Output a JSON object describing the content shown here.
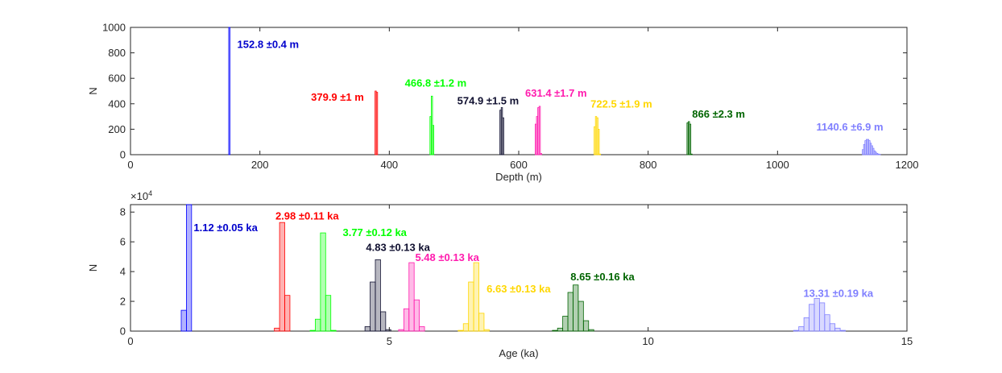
{
  "chart_data": [
    {
      "type": "histogram",
      "xlabel": "Depth (m)",
      "ylabel": "N",
      "xlim": [
        0,
        1200
      ],
      "ylim": [
        0,
        1000
      ],
      "xticks": [
        0,
        200,
        400,
        600,
        800,
        1000,
        1200
      ],
      "yticks": [
        0,
        200,
        400,
        600,
        800,
        1000
      ],
      "grid": false,
      "series": [
        {
          "label": "152.8 ±0.4 m",
          "color": "#0000ff",
          "fill_opacity": 0.3,
          "bins": [
            [
              151.8,
              153.8,
              1000
            ]
          ]
        },
        {
          "label": "379.9 ±1 m",
          "color": "#ff0000",
          "fill_opacity": 0.3,
          "bins": [
            [
              377.9,
              379.9,
              500
            ],
            [
              379.9,
              381.9,
              490
            ]
          ]
        },
        {
          "label": "466.8 ±1.2 m",
          "color": "#00ff00",
          "fill_opacity": 0.3,
          "bins": [
            [
              462.8,
              464.8,
              300
            ],
            [
              464.8,
              466.8,
              460
            ],
            [
              466.8,
              468.8,
              230
            ]
          ]
        },
        {
          "label": "574.9 ±1.5 m",
          "color": "#101030",
          "fill_opacity": 0.3,
          "bins": [
            [
              570.9,
              572.9,
              350
            ],
            [
              572.9,
              574.9,
              370
            ],
            [
              574.9,
              576.9,
              290
            ]
          ]
        },
        {
          "label": "631.4 ±1.7 m",
          "color": "#ff1cae",
          "fill_opacity": 0.3,
          "bins": [
            [
              625.4,
              627.4,
              240
            ],
            [
              627.4,
              629.4,
              300
            ],
            [
              629.4,
              631.4,
              370
            ],
            [
              631.4,
              633.4,
              380
            ],
            [
              633.4,
              635.4,
              10
            ]
          ]
        },
        {
          "label": "722.5 ±1.9 m",
          "color": "#ffd700",
          "fill_opacity": 0.3,
          "bins": [
            [
              716.5,
              718.5,
              220
            ],
            [
              718.5,
              720.5,
              300
            ],
            [
              720.5,
              722.5,
              290
            ],
            [
              722.5,
              724.5,
              200
            ],
            [
              724.5,
              726.5,
              5
            ]
          ]
        },
        {
          "label": "866 ±2.3 m",
          "color": "#006400",
          "fill_opacity": 0.3,
          "bins": [
            [
              860,
              862,
              250
            ],
            [
              862,
              864,
              260
            ],
            [
              864,
              866,
              240
            ],
            [
              866,
              868,
              5
            ]
          ]
        },
        {
          "label": "1140.6 ±6.9 m",
          "color": "#8080ff",
          "fill_opacity": 0.3,
          "bins": [
            [
              1131,
              1133,
              40
            ],
            [
              1133,
              1135,
              80
            ],
            [
              1135,
              1137,
              110
            ],
            [
              1137,
              1139,
              120
            ],
            [
              1139,
              1141,
              120
            ],
            [
              1141,
              1143,
              110
            ],
            [
              1143,
              1145,
              90
            ],
            [
              1145,
              1147,
              70
            ],
            [
              1147,
              1149,
              50
            ],
            [
              1149,
              1151,
              30
            ],
            [
              1151,
              1153,
              20
            ],
            [
              1153,
              1155,
              10
            ],
            [
              1155,
              1157,
              5
            ],
            [
              1157,
              1159,
              3
            ]
          ]
        }
      ],
      "annotations": [
        {
          "text": "152.8 ±0.4 m",
          "color": "#0000cc",
          "x": 165,
          "y": 840
        },
        {
          "text": "379.9 ±1 m",
          "color": "#ff0000",
          "x": 279,
          "y": 425
        },
        {
          "text": "466.8 ±1.2 m",
          "color": "#00ff00",
          "x": 424,
          "y": 535
        },
        {
          "text": "574.9 ±1.5 m",
          "color": "#101030",
          "x": 505,
          "y": 395
        },
        {
          "text": "631.4 ±1.7 m",
          "color": "#ff1cae",
          "x": 610,
          "y": 455
        },
        {
          "text": "722.5 ±1.9 m",
          "color": "#ffd700",
          "x": 711,
          "y": 370
        },
        {
          "text": "866 ±2.3 m",
          "color": "#006400",
          "x": 868,
          "y": 290
        },
        {
          "text": "1140.6 ±6.9 m",
          "color": "#8080ff",
          "x": 1060,
          "y": 190
        }
      ]
    },
    {
      "type": "histogram",
      "xlabel": "Age (ka)",
      "ylabel": "N",
      "y_exponent_label": "×10",
      "y_exponent": "4",
      "xlim": [
        0,
        15
      ],
      "ylim": [
        0,
        85000
      ],
      "xticks": [
        0,
        5,
        10,
        15
      ],
      "yticks": [
        0,
        20000,
        40000,
        60000,
        80000
      ],
      "ytick_labels": [
        "0",
        "2",
        "4",
        "6",
        "8"
      ],
      "grid": false,
      "series": [
        {
          "label": "1.12 ±0.05 ka",
          "color": "#0000ff",
          "fill_opacity": 0.3,
          "bins": [
            [
              0.98,
              1.08,
              14000
            ],
            [
              1.08,
              1.18,
              85000
            ]
          ]
        },
        {
          "label": "2.98 ±0.11 ka",
          "color": "#ff0000",
          "fill_opacity": 0.3,
          "bins": [
            [
              2.78,
              2.88,
              2000
            ],
            [
              2.88,
              2.98,
              73000
            ],
            [
              2.98,
              3.08,
              24000
            ]
          ]
        },
        {
          "label": "3.77 ±0.12 ka",
          "color": "#00ff00",
          "fill_opacity": 0.3,
          "bins": [
            [
              3.47,
              3.57,
              500
            ],
            [
              3.57,
              3.67,
              8000
            ],
            [
              3.67,
              3.77,
              66000
            ],
            [
              3.77,
              3.87,
              24000
            ],
            [
              3.87,
              3.97,
              500
            ]
          ]
        },
        {
          "label": "4.83 ±0.13 ka",
          "color": "#101030",
          "fill_opacity": 0.3,
          "bins": [
            [
              4.53,
              4.63,
              3000
            ],
            [
              4.63,
              4.73,
              33000
            ],
            [
              4.73,
              4.83,
              48000
            ],
            [
              4.83,
              4.93,
              13000
            ],
            [
              4.93,
              5.03,
              1000
            ]
          ]
        },
        {
          "label": "5.48 ±0.13 ka",
          "color": "#ff1cae",
          "fill_opacity": 0.3,
          "bins": [
            [
              5.18,
              5.28,
              1000
            ],
            [
              5.28,
              5.38,
              15000
            ],
            [
              5.38,
              5.48,
              46000
            ],
            [
              5.48,
              5.58,
              21000
            ],
            [
              5.58,
              5.68,
              3000
            ]
          ]
        },
        {
          "label": "6.63 ±0.13 ka",
          "color": "#ffd700",
          "fill_opacity": 0.3,
          "bins": [
            [
              6.33,
              6.43,
              500
            ],
            [
              6.43,
              6.53,
              5000
            ],
            [
              6.53,
              6.63,
              33000
            ],
            [
              6.63,
              6.73,
              46000
            ],
            [
              6.73,
              6.83,
              12000
            ],
            [
              6.83,
              6.93,
              1000
            ]
          ]
        },
        {
          "label": "8.65 ±0.16 ka",
          "color": "#006400",
          "fill_opacity": 0.3,
          "bins": [
            [
              8.15,
              8.25,
              500
            ],
            [
              8.25,
              8.35,
              2000
            ],
            [
              8.35,
              8.45,
              10000
            ],
            [
              8.45,
              8.55,
              26000
            ],
            [
              8.55,
              8.65,
              31000
            ],
            [
              8.65,
              8.75,
              20000
            ],
            [
              8.75,
              8.85,
              7000
            ],
            [
              8.85,
              8.95,
              1000
            ]
          ]
        },
        {
          "label": "13.31 ±0.19 ka",
          "color": "#8080ff",
          "fill_opacity": 0.3,
          "bins": [
            [
              12.81,
              12.91,
              500
            ],
            [
              12.91,
              13.01,
              3000
            ],
            [
              13.01,
              13.11,
              9000
            ],
            [
              13.11,
              13.21,
              18000
            ],
            [
              13.21,
              13.31,
              22000
            ],
            [
              13.31,
              13.41,
              19000
            ],
            [
              13.41,
              13.51,
              11000
            ],
            [
              13.51,
              13.61,
              5000
            ],
            [
              13.61,
              13.71,
              2000
            ],
            [
              13.71,
              13.81,
              500
            ]
          ]
        }
      ],
      "annotations": [
        {
          "text": "1.12 ±0.05 ka",
          "color": "#0000cc",
          "x": 1.22,
          "y": 67000
        },
        {
          "text": "2.98 ±0.11 ka",
          "color": "#ff0000",
          "x": 2.8,
          "y": 75000
        },
        {
          "text": "3.77 ±0.12 ka",
          "color": "#00ff00",
          "x": 4.1,
          "y": 64000
        },
        {
          "text": "4.83 ±0.13 ka",
          "color": "#101030",
          "x": 4.55,
          "y": 54000
        },
        {
          "text": "5.48 ±0.13 ka",
          "color": "#ff1cae",
          "x": 5.5,
          "y": 47000
        },
        {
          "text": "6.63 ±0.13 ka",
          "color": "#ffd700",
          "x": 6.88,
          "y": 26000
        },
        {
          "text": "8.65 ±0.16 ka",
          "color": "#006400",
          "x": 8.5,
          "y": 34000
        },
        {
          "text": "13.31 ±0.19 ka",
          "color": "#8080ff",
          "x": 13.0,
          "y": 23000
        }
      ]
    }
  ]
}
